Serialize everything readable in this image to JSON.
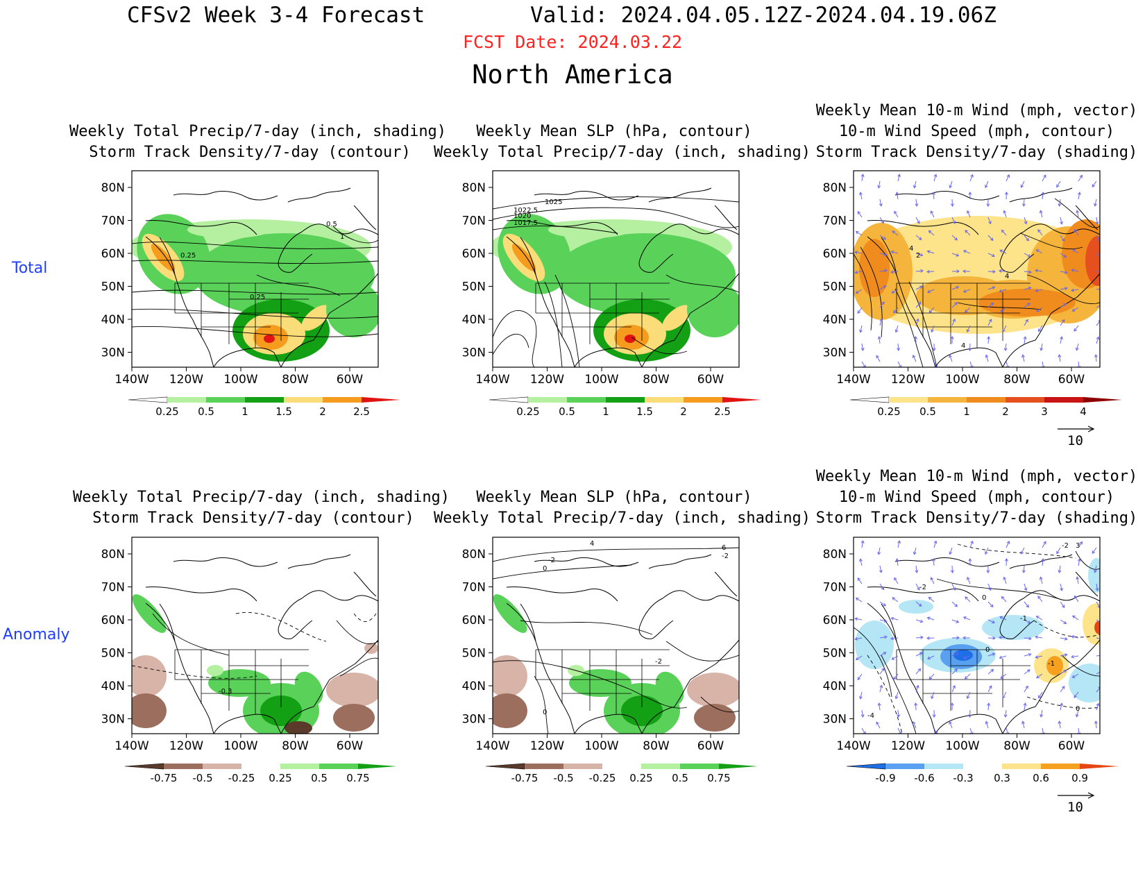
{
  "header": {
    "main_title": "CFSv2 Week 3-4 Forecast",
    "valid": "Valid: 2024.04.05.12Z-2024.04.19.06Z",
    "fcst_date": "FCST Date: 2024.03.22",
    "region": "North America"
  },
  "rows": {
    "total": "Total",
    "anomaly": "Anomaly"
  },
  "colors": {
    "precip_total": [
      "#ffffff",
      "#b4f0a0",
      "#5ad25a",
      "#14a014",
      "#fadc78",
      "#f59b1e",
      "#e11414"
    ],
    "precip_anom": [
      "#5a3a2a",
      "#9c6e5e",
      "#d8b4a8",
      "#ffffff",
      "#b4f0a0",
      "#5ad25a",
      "#14a014"
    ],
    "storm_total": [
      "#ffffff",
      "#fde38a",
      "#f5b43c",
      "#f08c1e",
      "#e6501e",
      "#c81414",
      "#8c0000"
    ],
    "storm_anom": [
      "#1e6ee6",
      "#5aa0f0",
      "#b4e6f5",
      "#ffffff",
      "#fde38a",
      "#f5a01e",
      "#e64614"
    ],
    "wind_vector": "#6666ee",
    "contour": "#000000",
    "fcst_red": "#ff2020",
    "row_label": "#1f3fff"
  },
  "axes": {
    "lat_ticks": [
      "80N",
      "70N",
      "60N",
      "50N",
      "40N",
      "30N"
    ],
    "lon_ticks": [
      "140W",
      "120W",
      "100W",
      "80W",
      "60W"
    ]
  },
  "panels": {
    "p1": {
      "title": [
        "Weekly Total Precip/7-day (inch, shading)",
        "Storm Track Density/7-day (contour)"
      ],
      "contour_labels": [
        "0.5",
        "1",
        "0.25",
        "0.25"
      ]
    },
    "p2": {
      "title": [
        "Weekly Mean SLP (hPa, contour)",
        "Weekly Total Precip/7-day (inch, shading)"
      ],
      "contour_labels": [
        "1025",
        "1022.5",
        "1020",
        "1017.5"
      ]
    },
    "p3": {
      "title": [
        "Weekly Mean 10-m Wind (mph, vector)",
        "10-m Wind Speed (mph, contour)",
        "Storm Track Density/7-day (shading)"
      ],
      "contour_labels": [
        "4",
        "2",
        "4",
        "4"
      ]
    },
    "p4": {
      "title": [
        "Weekly Total Precip/7-day (inch, shading)",
        "Storm Track Density/7-day (contour)"
      ],
      "contour_labels": [
        "-0.3"
      ]
    },
    "p5": {
      "title": [
        "Weekly Mean SLP (hPa, contour)",
        "Weekly Total Precip/7-day (inch, shading)"
      ],
      "contour_labels": [
        "4",
        "-2",
        "0",
        "-2",
        "6",
        "-2",
        "0"
      ]
    },
    "p6": {
      "title": [
        "Weekly Mean 10-m Wind (mph, vector)",
        "10-m Wind Speed (mph, contour)",
        "Storm Track Density/7-day (shading)"
      ],
      "contour_labels": [
        "-2",
        "3",
        "-2",
        "0",
        "0",
        "-1",
        "-4",
        "-1",
        "0"
      ]
    }
  },
  "colorbars": {
    "precip_total": [
      "0.25",
      "0.5",
      "1",
      "1.5",
      "2",
      "2.5"
    ],
    "storm_total": [
      "0.25",
      "0.5",
      "1",
      "2",
      "3",
      "4"
    ],
    "precip_anom": [
      "-0.75",
      "-0.5",
      "-0.25",
      "0.25",
      "0.5",
      "0.75"
    ],
    "storm_anom": [
      "-0.9",
      "-0.6",
      "-0.3",
      "0.3",
      "0.6",
      "0.9"
    ]
  },
  "reference_vector": "10"
}
